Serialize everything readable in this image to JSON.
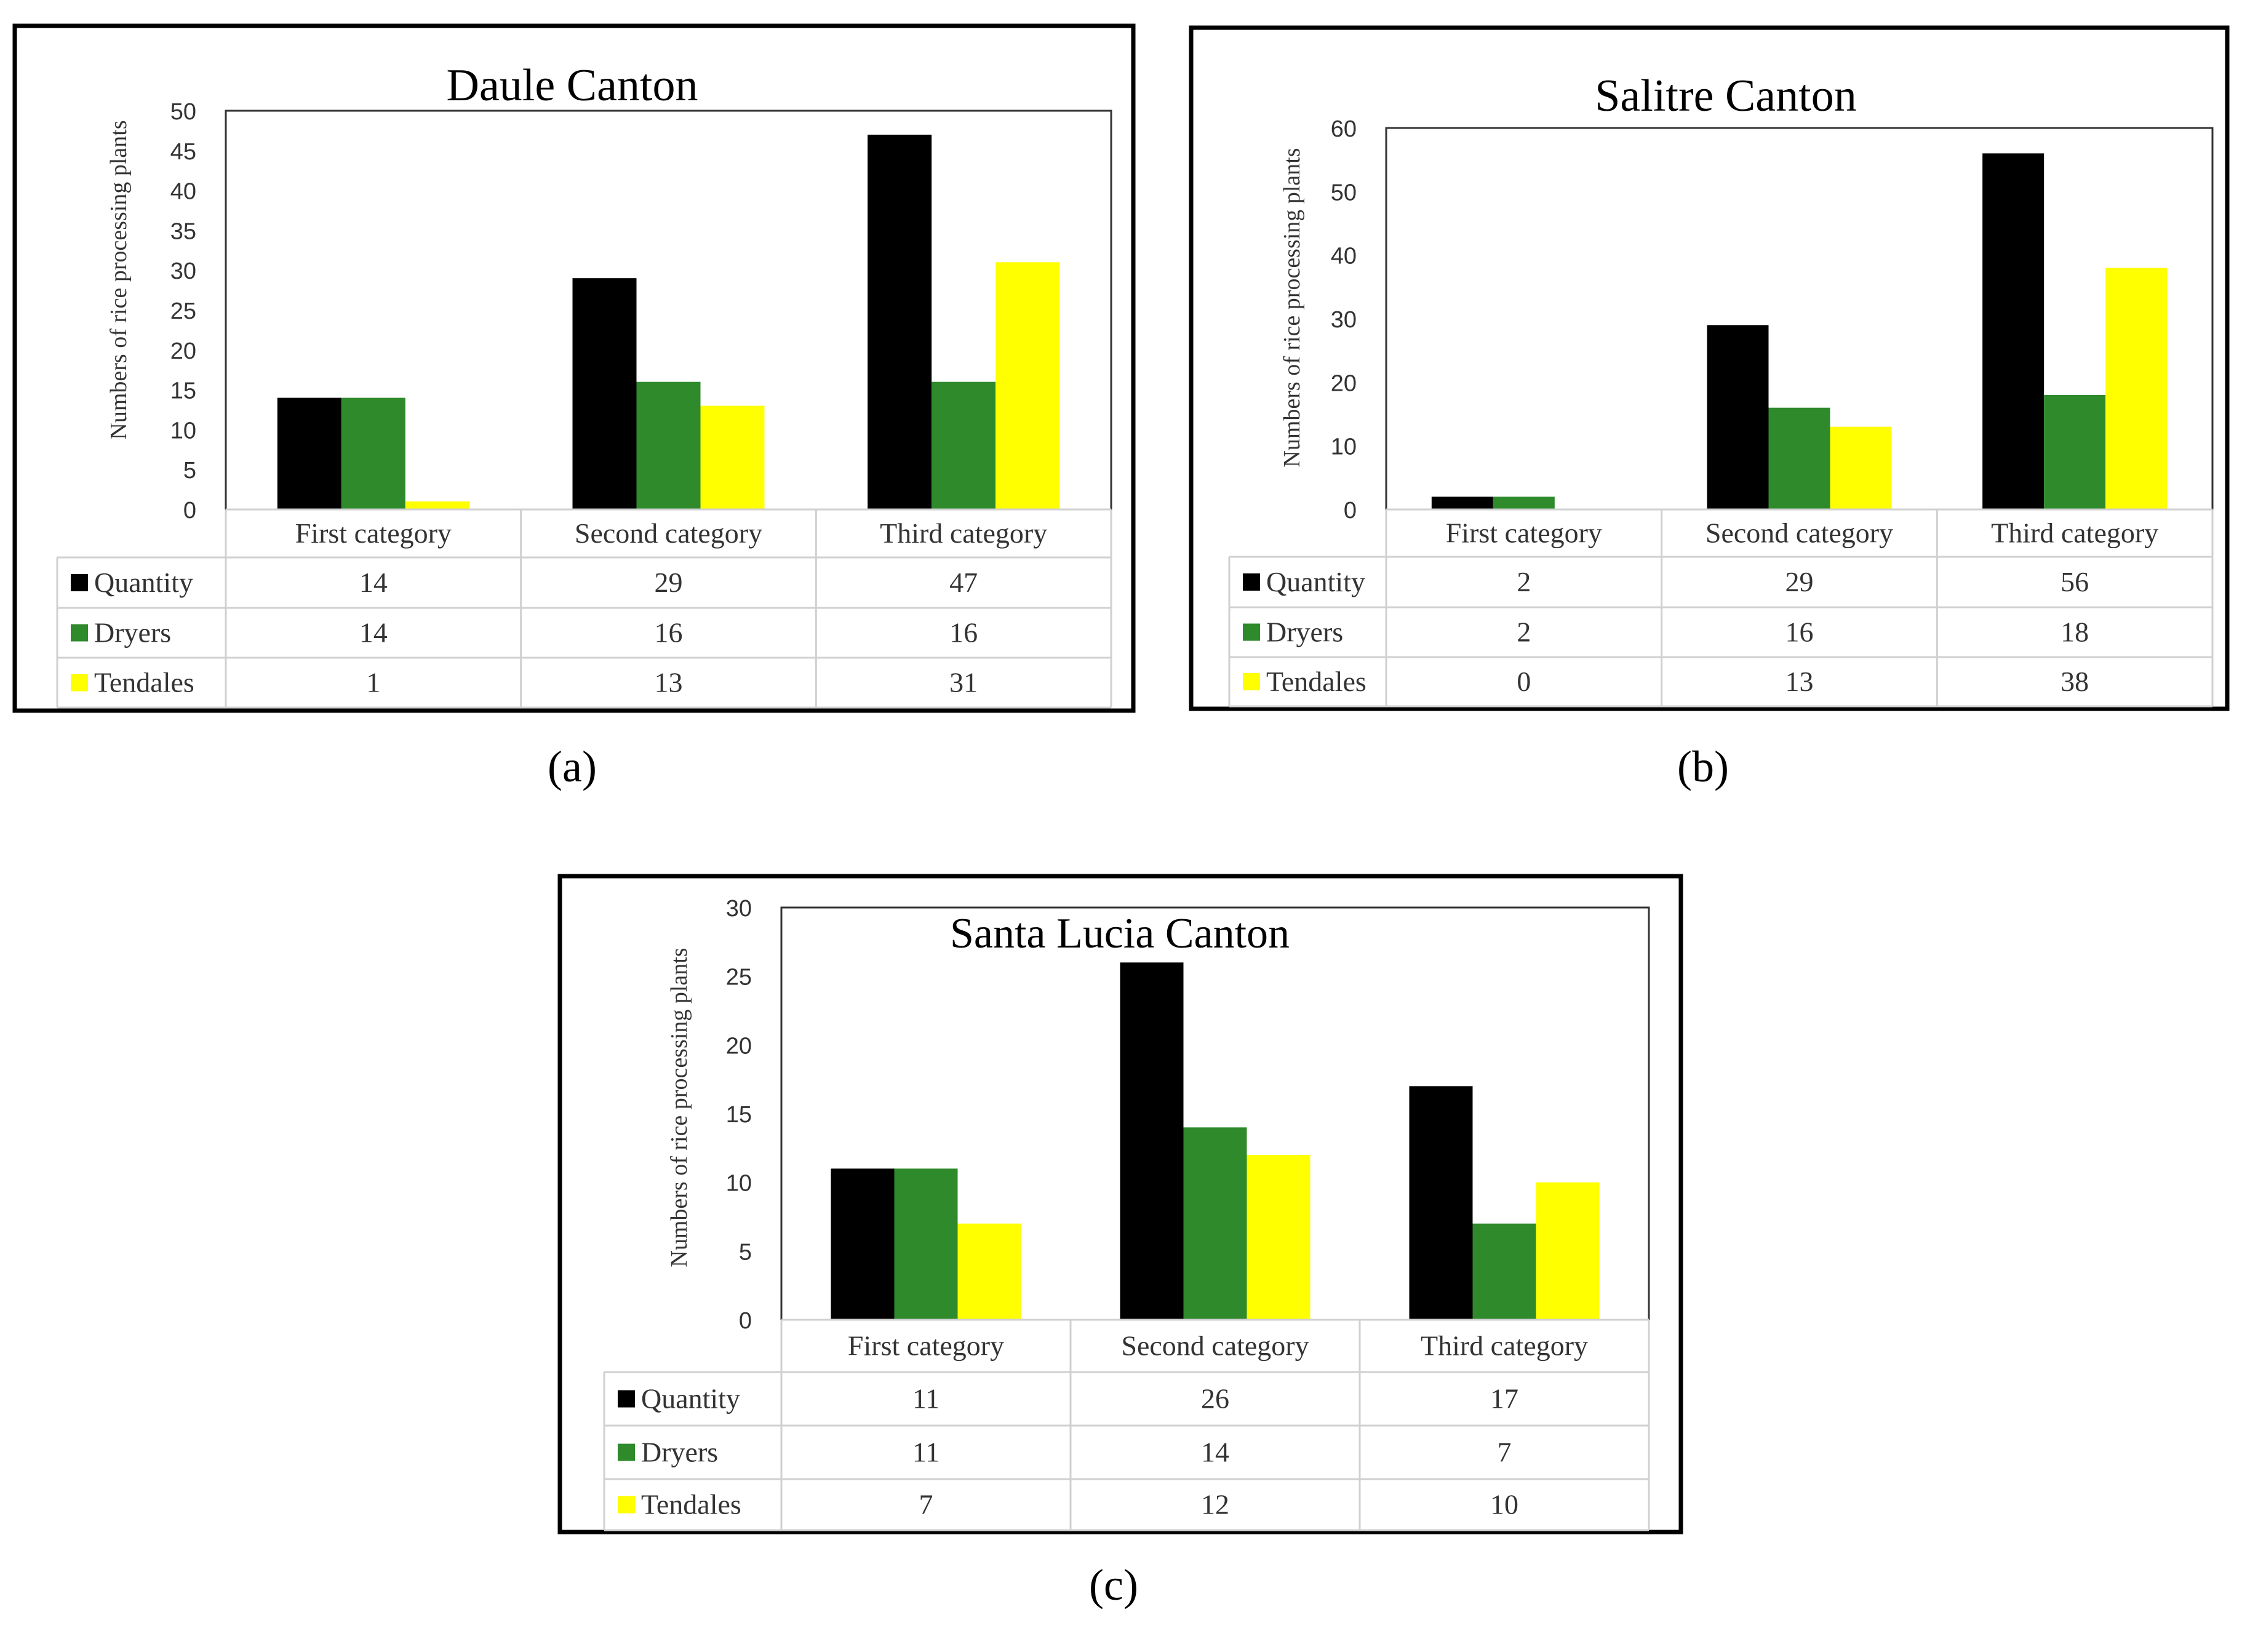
{
  "colors": {
    "quantity": "#000000",
    "dryers": "#2e8a2b",
    "tendales": "#ffff00",
    "frame": "#000000",
    "grid": "#d0d0d0",
    "text": "#333333"
  },
  "chart_data": [
    {
      "type": "bar",
      "panel_label": "(a)",
      "title": "Daule Canton",
      "ylabel": "Numbers of rice processing plants",
      "xlabel": "",
      "ylim": [
        0,
        50
      ],
      "yticks": [
        0,
        5,
        10,
        15,
        20,
        25,
        30,
        35,
        40,
        45,
        50
      ],
      "categories": [
        "First category",
        "Second category",
        "Third category"
      ],
      "series": [
        {
          "name": "Quantity",
          "color_key": "quantity",
          "values": [
            14,
            29,
            47
          ]
        },
        {
          "name": "Dryers",
          "color_key": "dryers",
          "values": [
            14,
            16,
            16
          ]
        },
        {
          "name": "Tendales",
          "color_key": "tendales",
          "values": [
            1,
            13,
            31
          ]
        }
      ],
      "legend": "data-table below chart"
    },
    {
      "type": "bar",
      "panel_label": "(b)",
      "title": "Salitre Canton",
      "ylabel": "Numbers of rice processing plants",
      "xlabel": "",
      "ylim": [
        0,
        60
      ],
      "yticks": [
        0,
        10,
        20,
        30,
        40,
        50,
        60
      ],
      "categories": [
        "First category",
        "Second category",
        "Third category"
      ],
      "series": [
        {
          "name": "Quantity",
          "color_key": "quantity",
          "values": [
            2,
            29,
            56
          ]
        },
        {
          "name": "Dryers",
          "color_key": "dryers",
          "values": [
            2,
            16,
            18
          ]
        },
        {
          "name": "Tendales",
          "color_key": "tendales",
          "values": [
            0,
            13,
            38
          ]
        }
      ],
      "legend": "data-table below chart"
    },
    {
      "type": "bar",
      "panel_label": "(c)",
      "title": "Santa Lucia Canton",
      "ylabel": "Numbers of rice processing plants",
      "xlabel": "",
      "ylim": [
        0,
        30
      ],
      "yticks": [
        0,
        5,
        10,
        15,
        20,
        25,
        30
      ],
      "categories": [
        "First category",
        "Second category",
        "Third category"
      ],
      "series": [
        {
          "name": "Quantity",
          "color_key": "quantity",
          "values": [
            11,
            26,
            17
          ]
        },
        {
          "name": "Dryers",
          "color_key": "dryers",
          "values": [
            11,
            14,
            7
          ]
        },
        {
          "name": "Tendales",
          "color_key": "tendales",
          "values": [
            7,
            12,
            10
          ]
        }
      ],
      "legend": "data-table below chart"
    }
  ]
}
